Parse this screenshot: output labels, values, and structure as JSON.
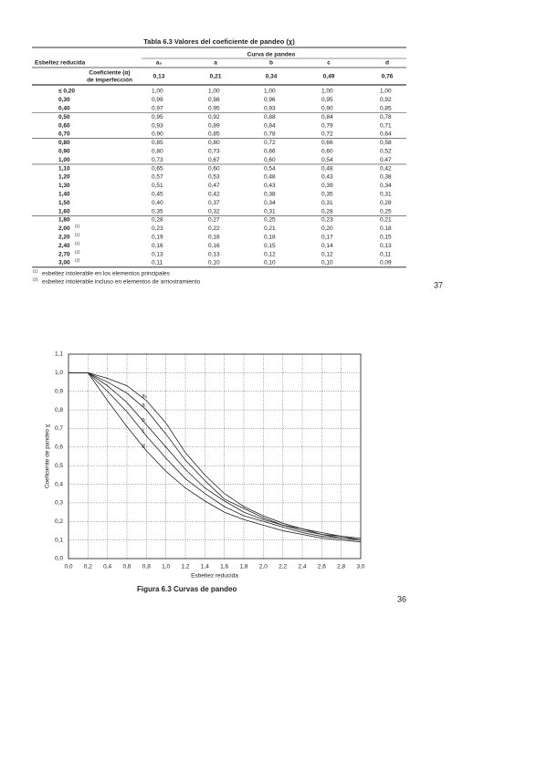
{
  "table": {
    "title": "Tabla 6.3 Valores del coeficiente de pandeo (χ)",
    "header": {
      "stub": "Esbeltez reducida",
      "group": "Curva de pandeo",
      "columns": [
        "a₀",
        "a",
        "b",
        "c",
        "d"
      ]
    },
    "imperfection": {
      "label_1": "Coeficiente (α)",
      "label_2": "de imperfección",
      "values": [
        "0,13",
        "0,21",
        "0,34",
        "0,49",
        "0,76"
      ]
    },
    "rows": [
      {
        "label": "≤ 0,20",
        "values": [
          "1,00",
          "1,00",
          "1,00",
          "1,00",
          "1,00"
        ]
      },
      {
        "label": "0,30",
        "values": [
          "0,99",
          "0,98",
          "0,96",
          "0,95",
          "0,92"
        ]
      },
      {
        "label": "0,40",
        "values": [
          "0,97",
          "0,95",
          "0,93",
          "0,90",
          "0,85"
        ]
      },
      {
        "label": "0,50",
        "values": [
          "0,95",
          "0,92",
          "0,88",
          "0,84",
          "0,78"
        ]
      },
      {
        "label": "0,60",
        "values": [
          "0,93",
          "0,89",
          "0,84",
          "0,79",
          "0,71"
        ]
      },
      {
        "label": "0,70",
        "values": [
          "0,90",
          "0,85",
          "0,78",
          "0,72",
          "0,64"
        ]
      },
      {
        "label": "0,80",
        "values": [
          "0,85",
          "0,80",
          "0,72",
          "0,66",
          "0,58"
        ]
      },
      {
        "label": "0,90",
        "values": [
          "0,80",
          "0,73",
          "0,66",
          "0,60",
          "0,52"
        ]
      },
      {
        "label": "1,00",
        "values": [
          "0,73",
          "0,67",
          "0,60",
          "0,54",
          "0,47"
        ]
      },
      {
        "label": "1,10",
        "values": [
          "0,65",
          "0,60",
          "0,54",
          "0,48",
          "0,42"
        ]
      },
      {
        "label": "1,20",
        "values": [
          "0,57",
          "0,53",
          "0,48",
          "0,43",
          "0,38"
        ]
      },
      {
        "label": "1,30",
        "values": [
          "0,51",
          "0,47",
          "0,43",
          "0,39",
          "0,34"
        ]
      },
      {
        "label": "1,40",
        "values": [
          "0,45",
          "0,42",
          "0,38",
          "0,35",
          "0,31"
        ]
      },
      {
        "label": "1,50",
        "values": [
          "0,40",
          "0,37",
          "0,34",
          "0,31",
          "0,28"
        ]
      },
      {
        "label": "1,60",
        "values": [
          "0,35",
          "0,32",
          "0,31",
          "0,28",
          "0,25"
        ]
      },
      {
        "label": "1,80",
        "values": [
          "0,28",
          "0,27",
          "0,25",
          "0,23",
          "0,21"
        ]
      },
      {
        "label": "2,00",
        "note": "(1)",
        "values": [
          "0,23",
          "0,22",
          "0,21",
          "0,20",
          "0,18"
        ]
      },
      {
        "label": "2,20",
        "note": "(1)",
        "values": [
          "0,19",
          "0,18",
          "0,18",
          "0,17",
          "0,15"
        ]
      },
      {
        "label": "2,40",
        "note": "(1)",
        "values": [
          "0,16",
          "0,16",
          "0,15",
          "0,14",
          "0,13"
        ]
      },
      {
        "label": "2,70",
        "note": "(2)",
        "values": [
          "0,13",
          "0,13",
          "0,12",
          "0,12",
          "0,11"
        ]
      },
      {
        "label": "3,00",
        "note": "(2)",
        "values": [
          "0,11",
          "0,10",
          "0,10",
          "0,10",
          "0,09"
        ]
      }
    ],
    "footnotes": [
      {
        "mark": "(1)",
        "text": "esbeltez intolerable en los elementos principales"
      },
      {
        "mark": "(2)",
        "text": "esbeltez intolerable incluso en elementos de arriostramiento"
      }
    ]
  },
  "page_number_top": "37",
  "page_number_bottom": "36",
  "chart_data": {
    "type": "line",
    "title": "Figura 6.3 Curvas de pandeo",
    "x_label": "Esbeltez reducida",
    "y_label": "Coeficiente de pandeo χ",
    "x": [
      0,
      0.2,
      0.4,
      0.6,
      0.8,
      1.0,
      1.2,
      1.4,
      1.6,
      1.8,
      2.0,
      2.2,
      2.4,
      2.6,
      2.8,
      3.0
    ],
    "series": [
      {
        "name": "a₀",
        "color": "#222222",
        "values": [
          1,
          1,
          0.97,
          0.93,
          0.85,
          0.73,
          0.57,
          0.45,
          0.35,
          0.28,
          0.23,
          0.19,
          0.16,
          0.14,
          0.12,
          0.11
        ]
      },
      {
        "name": "a",
        "color": "#222222",
        "values": [
          1,
          1,
          0.95,
          0.89,
          0.8,
          0.67,
          0.53,
          0.42,
          0.32,
          0.27,
          0.22,
          0.18,
          0.16,
          0.13,
          0.12,
          0.1
        ]
      },
      {
        "name": "b",
        "color": "#222222",
        "values": [
          1,
          1,
          0.93,
          0.84,
          0.72,
          0.6,
          0.48,
          0.38,
          0.31,
          0.25,
          0.21,
          0.18,
          0.15,
          0.13,
          0.11,
          0.1
        ]
      },
      {
        "name": "c",
        "color": "#222222",
        "values": [
          1,
          1,
          0.9,
          0.79,
          0.66,
          0.54,
          0.43,
          0.35,
          0.28,
          0.23,
          0.2,
          0.17,
          0.14,
          0.12,
          0.11,
          0.1
        ]
      },
      {
        "name": "d",
        "color": "#222222",
        "values": [
          1,
          1,
          0.85,
          0.71,
          0.58,
          0.47,
          0.38,
          0.31,
          0.25,
          0.21,
          0.18,
          0.15,
          0.13,
          0.11,
          0.1,
          0.09
        ]
      }
    ],
    "xlim": [
      0,
      3
    ],
    "ylim": [
      0,
      1.1
    ],
    "xticks": [
      {
        "value": 0,
        "label": "0,0"
      },
      {
        "value": 0.2,
        "label": "0,2"
      },
      {
        "value": 0.4,
        "label": "0,4"
      },
      {
        "value": 0.6,
        "label": "0,6"
      },
      {
        "value": 0.8,
        "label": "0,8"
      },
      {
        "value": 1.0,
        "label": "1,0"
      },
      {
        "value": 1.2,
        "label": "1,2"
      },
      {
        "value": 1.4,
        "label": "1,4"
      },
      {
        "value": 1.6,
        "label": "1,6"
      },
      {
        "value": 1.8,
        "label": "1,8"
      },
      {
        "value": 2.0,
        "label": "2,0"
      },
      {
        "value": 2.2,
        "label": "2,2"
      },
      {
        "value": 2.4,
        "label": "2,4"
      },
      {
        "value": 2.6,
        "label": "2,6"
      },
      {
        "value": 2.8,
        "label": "2,8"
      },
      {
        "value": 3.0,
        "label": "3,0"
      }
    ],
    "yticks": [
      {
        "value": 0,
        "label": "0,0"
      },
      {
        "value": 0.1,
        "label": "0,1"
      },
      {
        "value": 0.2,
        "label": "0,2"
      },
      {
        "value": 0.3,
        "label": "0,3"
      },
      {
        "value": 0.4,
        "label": "0,4"
      },
      {
        "value": 0.5,
        "label": "0,5"
      },
      {
        "value": 0.6,
        "label": "0,6"
      },
      {
        "value": 0.7,
        "label": "0,7"
      },
      {
        "value": 0.8,
        "label": "0,8"
      },
      {
        "value": 0.9,
        "label": "0,9"
      },
      {
        "value": 1.0,
        "label": "1,0"
      },
      {
        "value": 1.1,
        "label": "1,1"
      }
    ],
    "grid": true
  }
}
